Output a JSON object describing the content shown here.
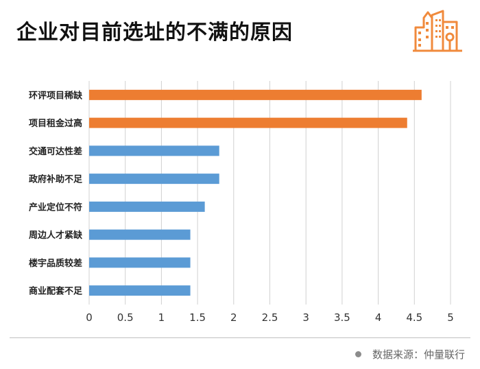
{
  "title": "企业对目前选址的不满的原因",
  "source": "数据来源：仲量联行",
  "chart_data": {
    "type": "bar",
    "orientation": "horizontal",
    "title": "企业对目前选址的不满的原因",
    "categories": [
      "环评项目稀缺",
      "项目租金过高",
      "交通可达性差",
      "政府补助不足",
      "产业定位不符",
      "周边人才紧缺",
      "楼宇品质较差",
      "商业配套不足"
    ],
    "values": [
      4.6,
      4.4,
      1.8,
      1.8,
      1.6,
      1.4,
      1.4,
      1.4
    ],
    "bar_colors": [
      "#ed7d31",
      "#ed7d31",
      "#5b9bd5",
      "#5b9bd5",
      "#5b9bd5",
      "#5b9bd5",
      "#5b9bd5",
      "#5b9bd5"
    ],
    "xlim": [
      0,
      5
    ],
    "xticks": [
      "0",
      "0.5",
      "1",
      "1.5",
      "2",
      "2.5",
      "3",
      "3.5",
      "4",
      "4.5",
      "5"
    ],
    "grid": true,
    "xlabel": "",
    "ylabel": ""
  }
}
